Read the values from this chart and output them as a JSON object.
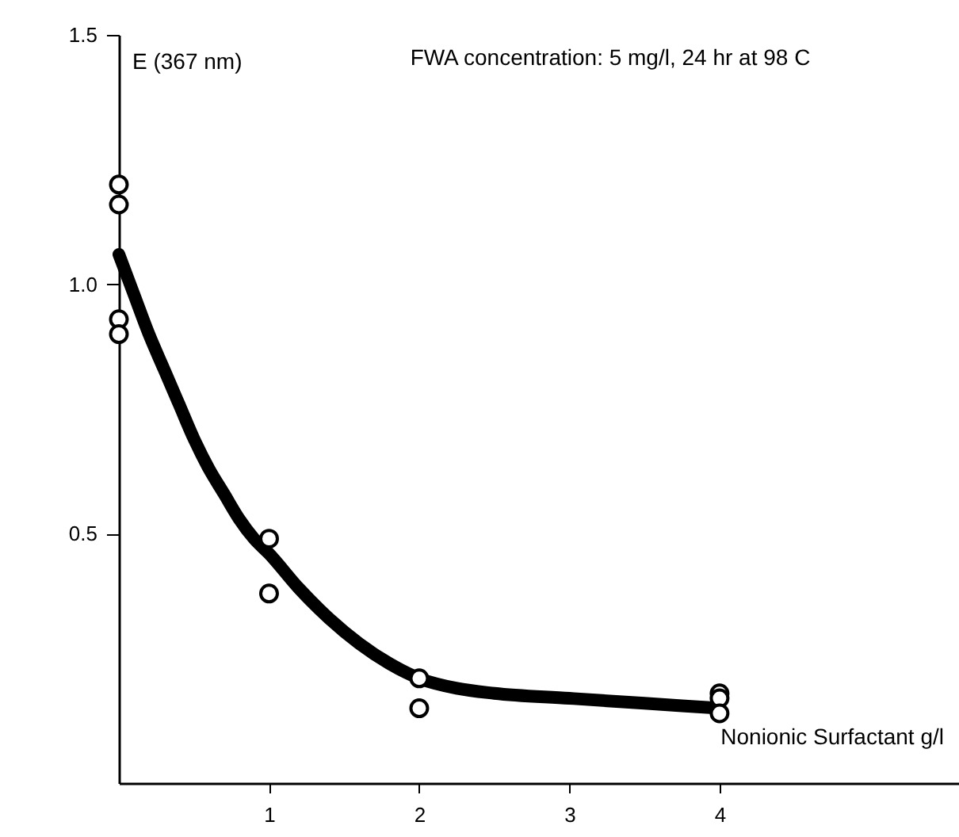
{
  "chart_data": {
    "type": "scatter",
    "title": "FWA concentration: 5 mg/l, 24 hr at 98 C",
    "xlabel": "Nonionic Surfactant g/l",
    "ylabel": "E (367 nm)",
    "xlim": [
      0,
      5.7
    ],
    "xticks": [
      1,
      2,
      3,
      4
    ],
    "ylim": [
      0,
      1.5
    ],
    "yticks": [
      0.5,
      {
        "value": 1,
        "label": "1.0"
      },
      {
        "value": 1.5,
        "label": "1.5"
      }
    ],
    "grid": false,
    "marker": "circle",
    "series": [
      {
        "color": "#000000",
        "x": [
          0,
          0,
          0,
          0,
          1,
          1,
          2,
          2,
          4,
          4,
          4
        ],
        "values": [
          1.2,
          1.16,
          0.93,
          0.9,
          0.49,
          0.38,
          0.21,
          0.15,
          0.18,
          0.17,
          0.14
        ]
      },
      {
        "type": "line",
        "marker": "none",
        "color": "#000000",
        "x": [
          0,
          0.1,
          0.2,
          0.3,
          0.4,
          0.5,
          0.6,
          0.7,
          0.8,
          0.9,
          1,
          1.2,
          1.4,
          1.6,
          1.8,
          2,
          2.25,
          2.5,
          3,
          3.5,
          4
        ],
        "values": [
          1.06,
          0.98,
          0.9,
          0.83,
          0.76,
          0.69,
          0.63,
          0.58,
          0.53,
          0.49,
          0.46,
          0.39,
          0.33,
          0.28,
          0.24,
          0.21,
          0.19,
          0.18,
          0.17,
          0.16,
          0.15
        ]
      }
    ]
  }
}
